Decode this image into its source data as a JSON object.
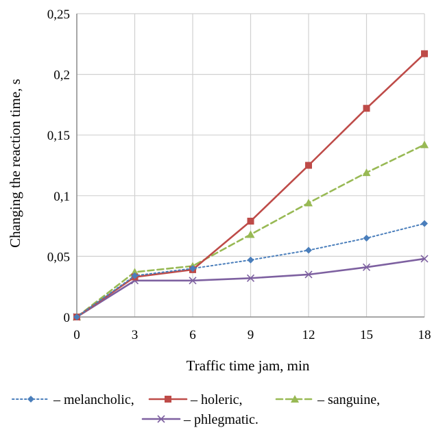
{
  "chart_data": {
    "type": "line",
    "title": "",
    "xlabel": "Traffic time jam, min",
    "ylabel": "Changing the reaction time, s",
    "x": [
      0,
      3,
      6,
      9,
      12,
      15,
      18
    ],
    "x_tick_labels": [
      "0",
      "3",
      "6",
      "9",
      "12",
      "15",
      "18"
    ],
    "xlim": [
      0,
      18
    ],
    "ylim": [
      0,
      0.25
    ],
    "y_ticks": [
      0,
      0.05,
      0.1,
      0.15,
      0.2,
      0.25
    ],
    "y_tick_labels": [
      "0",
      "0,05",
      "0,1",
      "0,15",
      "0,2",
      "0,25"
    ],
    "grid": true,
    "legend_position": "bottom",
    "series": [
      {
        "name": "melancholic,",
        "legend_label": "– melancholic,",
        "values": [
          0,
          0.034,
          0.04,
          0.047,
          0.055,
          0.065,
          0.077
        ],
        "color": "#4a7ebb",
        "line_style": "dotted",
        "marker": "diamond"
      },
      {
        "name": "holeric,",
        "legend_label": "– holeric,",
        "values": [
          0,
          0.033,
          0.039,
          0.079,
          0.125,
          0.172,
          0.217
        ],
        "color": "#be4b48",
        "line_style": "solid",
        "marker": "square"
      },
      {
        "name": "sanguine,",
        "legend_label": "– sanguine,",
        "values": [
          0,
          0.037,
          0.042,
          0.068,
          0.094,
          0.119,
          0.142
        ],
        "color": "#98b954",
        "line_style": "dashed",
        "marker": "triangle"
      },
      {
        "name": "phlegmatic.",
        "legend_label": "– phlegmatic.",
        "values": [
          0,
          0.03,
          0.03,
          0.032,
          0.035,
          0.041,
          0.048
        ],
        "color": "#7d60a0",
        "line_style": "solid",
        "marker": "x"
      }
    ]
  }
}
